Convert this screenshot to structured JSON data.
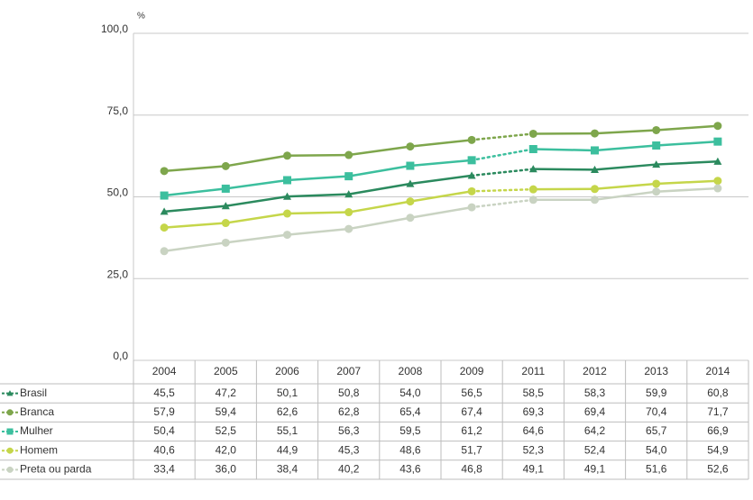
{
  "chart_data": {
    "type": "line",
    "y_label": "%",
    "categories": [
      "2004",
      "2005",
      "2006",
      "2007",
      "2008",
      "2009",
      "2011",
      "2012",
      "2013",
      "2014"
    ],
    "ylim": [
      0,
      100
    ],
    "yticks": [
      {
        "value": 0,
        "label": "0,0"
      },
      {
        "value": 25,
        "label": "25,0"
      },
      {
        "value": 50,
        "label": "50,0"
      },
      {
        "value": 75,
        "label": "75,0"
      },
      {
        "value": 100,
        "label": "100,0"
      }
    ],
    "grid": true,
    "series": [
      {
        "name": "Brasil",
        "color": "#2b8a5e",
        "marker": "triangle",
        "values": [
          45.5,
          47.2,
          50.1,
          50.8,
          54.0,
          56.5,
          58.5,
          58.3,
          59.9,
          60.8
        ],
        "value_labels": [
          "45,5",
          "47,2",
          "50,1",
          "50,8",
          "54,0",
          "56,5",
          "58,5",
          "58,3",
          "59,9",
          "60,8"
        ]
      },
      {
        "name": "Branca",
        "color": "#7ea64c",
        "marker": "circle",
        "values": [
          57.9,
          59.4,
          62.6,
          62.8,
          65.4,
          67.4,
          69.3,
          69.4,
          70.4,
          71.7
        ],
        "value_labels": [
          "57,9",
          "59,4",
          "62,6",
          "62,8",
          "65,4",
          "67,4",
          "69,3",
          "69,4",
          "70,4",
          "71,7"
        ]
      },
      {
        "name": "Mulher",
        "color": "#3cbf9e",
        "marker": "square",
        "values": [
          50.4,
          52.5,
          55.1,
          56.3,
          59.5,
          61.2,
          64.6,
          64.2,
          65.7,
          66.9
        ],
        "value_labels": [
          "50,4",
          "52,5",
          "55,1",
          "56,3",
          "59,5",
          "61,2",
          "64,6",
          "64,2",
          "65,7",
          "66,9"
        ]
      },
      {
        "name": "Homem",
        "color": "#c5d64a",
        "marker": "circle",
        "values": [
          40.6,
          42.0,
          44.9,
          45.3,
          48.6,
          51.7,
          52.3,
          52.4,
          54.0,
          54.9
        ],
        "value_labels": [
          "40,6",
          "42,0",
          "44,9",
          "45,3",
          "48,6",
          "51,7",
          "52,3",
          "52,4",
          "54,0",
          "54,9"
        ]
      },
      {
        "name": "Preta ou parda",
        "color": "#c9d3c2",
        "marker": "circle",
        "values": [
          33.4,
          36.0,
          38.4,
          40.2,
          43.6,
          46.8,
          49.1,
          49.1,
          51.6,
          52.6
        ],
        "value_labels": [
          "33,4",
          "36,0",
          "38,4",
          "40,2",
          "43,6",
          "46,8",
          "49,1",
          "49,1",
          "51,6",
          "52,6"
        ]
      }
    ]
  }
}
